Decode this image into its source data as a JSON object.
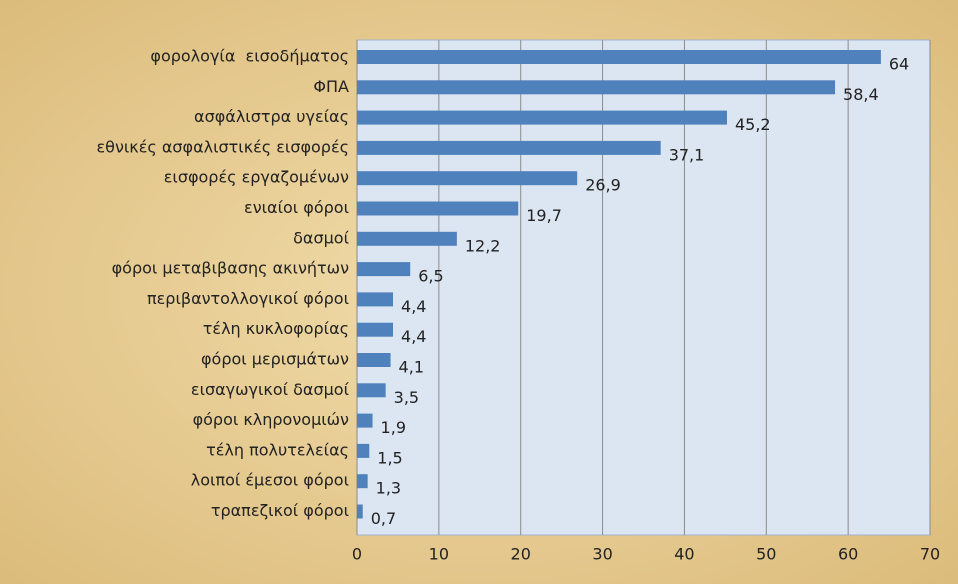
{
  "chart_data": {
    "type": "barh",
    "categories": [
      "φορολογία  εισοδήματος",
      "ΦΠΑ",
      "ασφάλιστρα υγείας",
      "εθνικές ασφαλιστικές εισφορές",
      "εισφορές εργαζομένων",
      "ενιαίοι φόροι",
      "δασμοί",
      "φόροι μεταβιβασης ακινήτων",
      "περιβαντολλογικοί φόροι",
      "τέλη κυκλοφορίας",
      "φόροι μερισμάτων",
      "εισαγωγικοί δασμοί",
      "φόροι κληρονομιών",
      "τέλη πολυτελείας",
      "λοιποί έμεσοι φόροι",
      "τραπεζικοί φόροι"
    ],
    "values": [
      64,
      58.4,
      45.2,
      37.1,
      26.9,
      19.7,
      12.2,
      6.5,
      4.4,
      4.4,
      4.1,
      3.5,
      1.9,
      1.5,
      1.3,
      0.7
    ],
    "value_labels": [
      "64",
      "58,4",
      "45,2",
      "37,1",
      "26,9",
      "19,7",
      "12,2",
      "6,5",
      "4,4",
      "4,4",
      "4,1",
      "3,5",
      "1,9",
      "1,5",
      "1,3",
      "0,7"
    ],
    "color": "#4f81bd",
    "xlim": [
      0,
      70
    ],
    "xticks": [
      0,
      10,
      20,
      30,
      40,
      50,
      60,
      70
    ],
    "grid": true
  }
}
